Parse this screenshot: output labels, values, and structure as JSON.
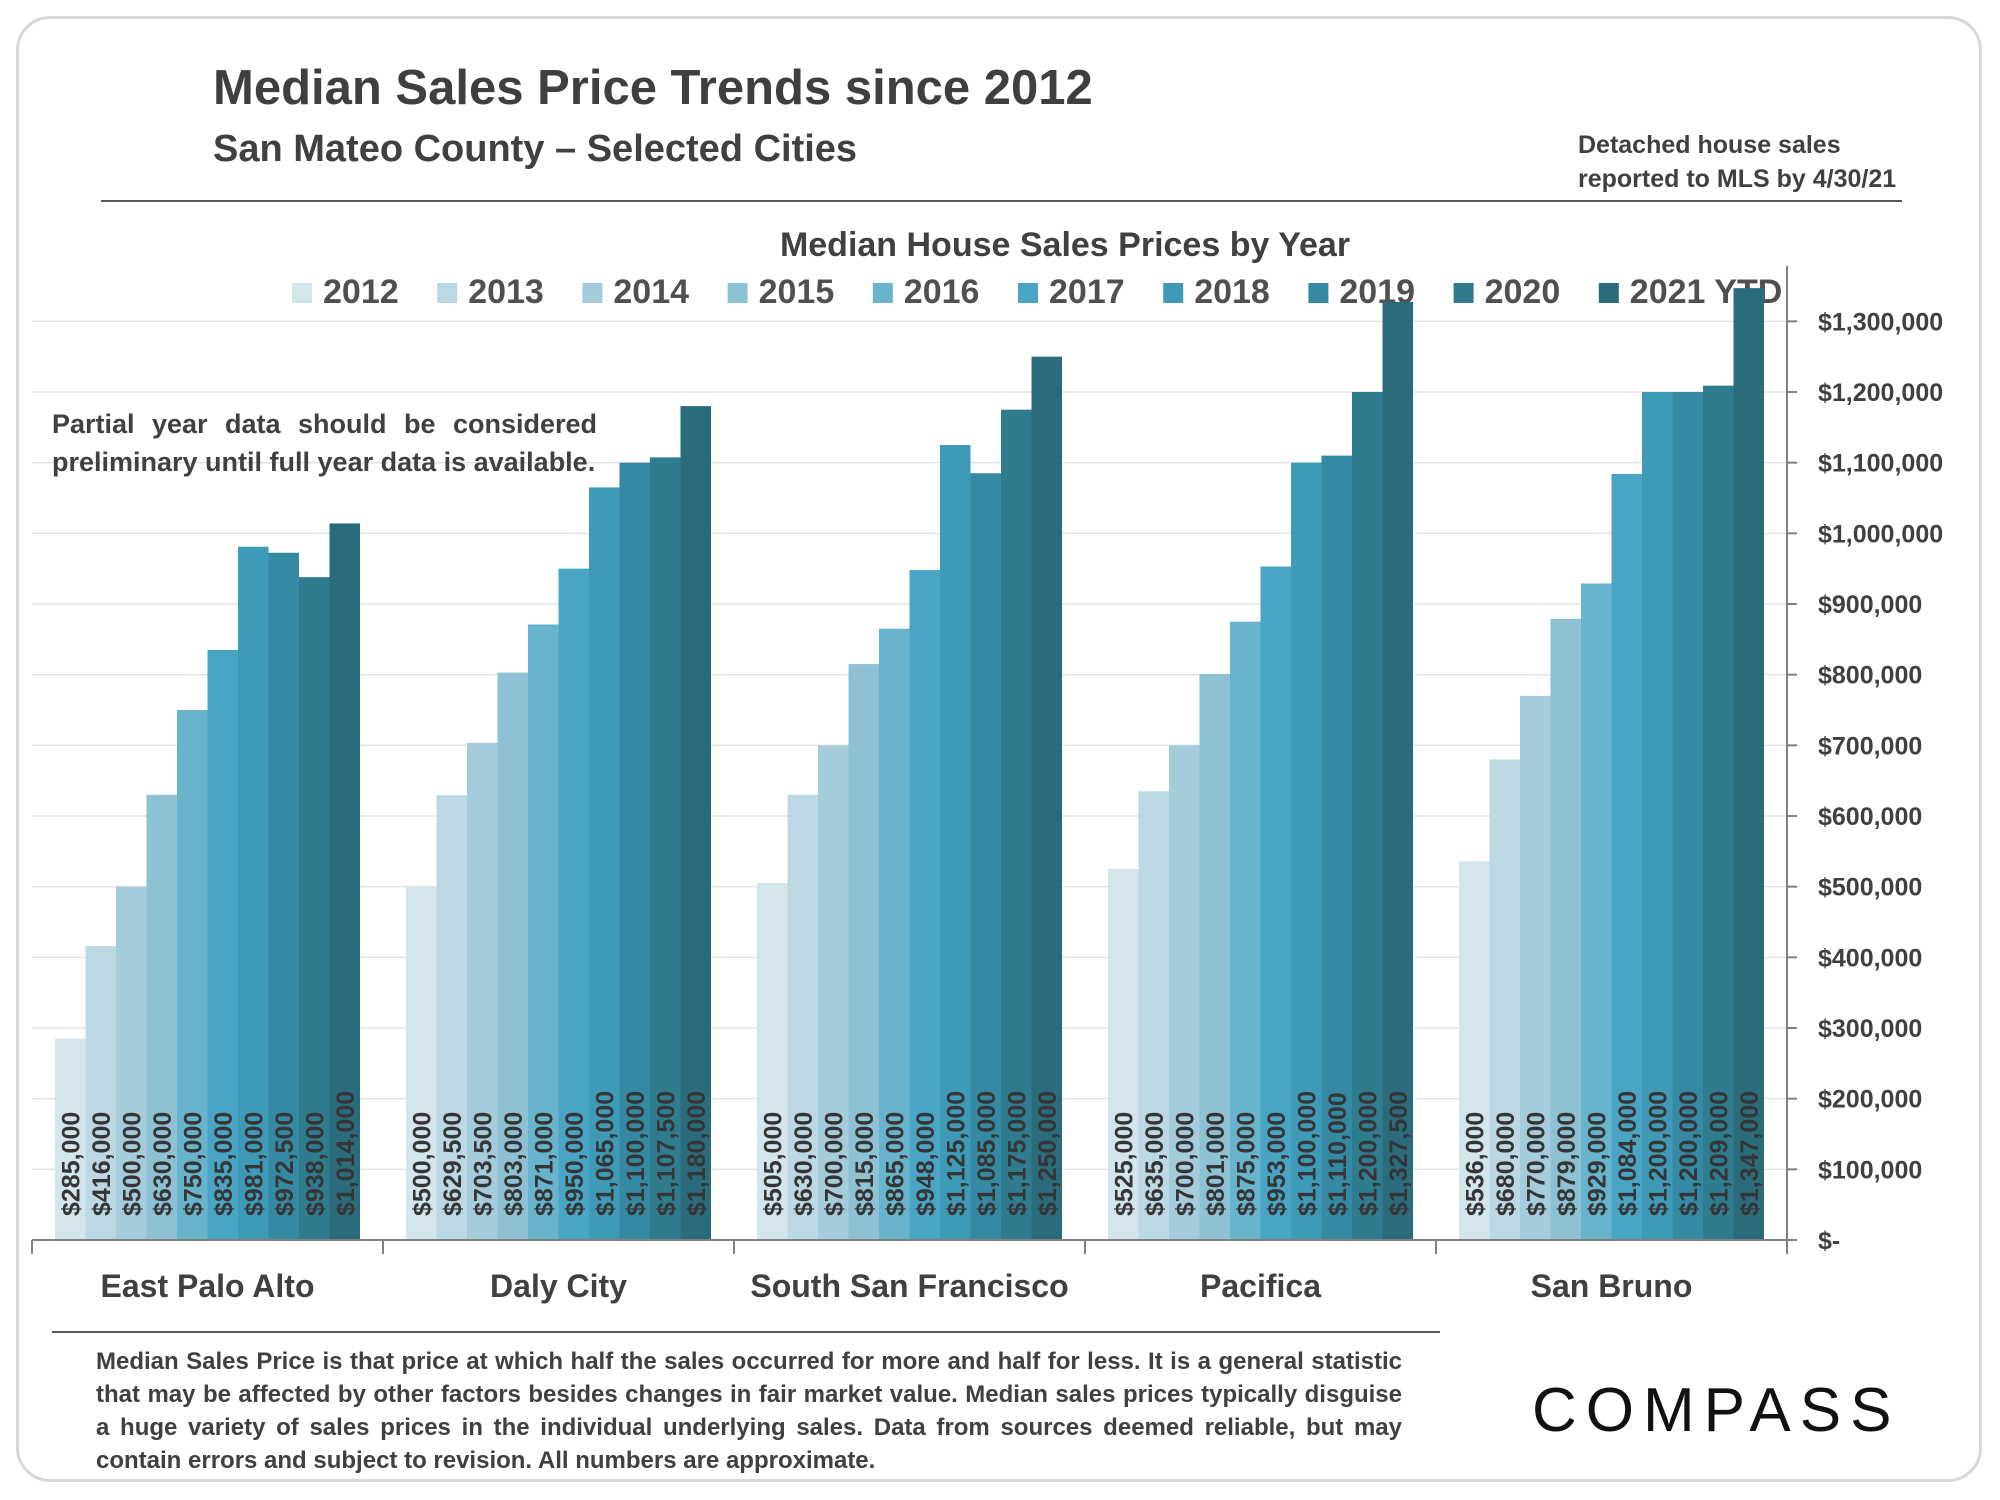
{
  "header": {
    "title": "Median Sales Price Trends since 2012",
    "subtitle": "San Mateo County – Selected Cities",
    "note_line1": "Detached house sales",
    "note_line2": "reported to MLS by 4/30/21"
  },
  "partial_note": "Partial year data should be considered preliminary until full year data is available.",
  "footnote": "Median Sales Price is that price at which half the sales occurred for more and half for less. It is a general statistic that may be affected by other factors besides changes in fair market value. Median sales prices typically disguise a huge variety of sales prices in the individual underlying sales. Data from sources deemed reliable, but may contain errors and subject to revision.  All numbers are approximate.",
  "logo": "COMPASS",
  "colors": {
    "series": [
      "#d4e5ec",
      "#bcd9e3",
      "#a5ccdb",
      "#8ec1d4",
      "#69b4cd",
      "#4aa5c4",
      "#3f9ab8",
      "#3689a2",
      "#307c8f",
      "#2b6c7c"
    ],
    "text": "#404040",
    "axis": "#808080",
    "grid": "#e3e3e3"
  },
  "chart_data": {
    "type": "bar",
    "title": "Median House Sales Prices by Year",
    "categories": [
      "East Palo Alto",
      "Daly City",
      "South San Francisco",
      "Pacifica",
      "San Bruno"
    ],
    "series": [
      {
        "name": "2012",
        "values": [
          285000,
          500000,
          505000,
          525000,
          536000
        ],
        "labels": [
          "$285,000",
          "$500,000",
          "$505,000",
          "$525,000",
          "$536,000"
        ]
      },
      {
        "name": "2013",
        "values": [
          416000,
          629500,
          630000,
          635000,
          680000
        ],
        "labels": [
          "$416,000",
          "$629,500",
          "$630,000",
          "$635,000",
          "$680,000"
        ]
      },
      {
        "name": "2014",
        "values": [
          500000,
          703500,
          700000,
          700000,
          770000
        ],
        "labels": [
          "$500,000",
          "$703,500",
          "$700,000",
          "$700,000",
          "$770,000"
        ]
      },
      {
        "name": "2015",
        "values": [
          630000,
          803000,
          815000,
          801000,
          879000
        ],
        "labels": [
          "$630,000",
          "$803,000",
          "$815,000",
          "$801,000",
          "$879,000"
        ]
      },
      {
        "name": "2016",
        "values": [
          750000,
          871000,
          865000,
          875000,
          929000
        ],
        "labels": [
          "$750,000",
          "$871,000",
          "$865,000",
          "$875,000",
          "$929,000"
        ]
      },
      {
        "name": "2017",
        "values": [
          835000,
          950000,
          948000,
          953000,
          1084000
        ],
        "labels": [
          "$835,000",
          "$950,000",
          "$948,000",
          "$953,000",
          "$1,084,000"
        ]
      },
      {
        "name": "2018",
        "values": [
          981000,
          1065000,
          1125000,
          1100000,
          1200000
        ],
        "labels": [
          "$981,000",
          "$1,065,000",
          "$1,125,000",
          "$1,100,000",
          "$1,200,000"
        ]
      },
      {
        "name": "2019",
        "values": [
          972500,
          1100000,
          1085000,
          1110000,
          1200000
        ],
        "labels": [
          "$972,500",
          "$1,100,000",
          "$1,085,000",
          "$1,110,000",
          "$1,200,000"
        ]
      },
      {
        "name": "2020",
        "values": [
          938000,
          1107500,
          1175000,
          1200000,
          1209000
        ],
        "labels": [
          "$938,000",
          "$1,107,500",
          "$1,175,000",
          "$1,200,000",
          "$1,209,000"
        ]
      },
      {
        "name": "2021 YTD",
        "values": [
          1014000,
          1180000,
          1250000,
          1327500,
          1347000
        ],
        "labels": [
          "$1,014,000",
          "$1,180,000",
          "$1,250,000",
          "$1,327,500",
          "$1,347,000"
        ]
      }
    ],
    "y_ticks": [
      0,
      100000,
      200000,
      300000,
      400000,
      500000,
      600000,
      700000,
      800000,
      900000,
      1000000,
      1100000,
      1200000,
      1300000
    ],
    "y_tick_labels": [
      "$-",
      "$100,000",
      "$200,000",
      "$300,000",
      "$400,000",
      "$500,000",
      "$600,000",
      "$700,000",
      "$800,000",
      "$900,000",
      "$1,000,000",
      "$1,100,000",
      "$1,200,000",
      "$1,300,000"
    ],
    "ylim": [
      0,
      1350000
    ],
    "y_axis_side": "right",
    "grid": true,
    "legend_position": "top",
    "data_labels": "rotated-inside-bars"
  }
}
